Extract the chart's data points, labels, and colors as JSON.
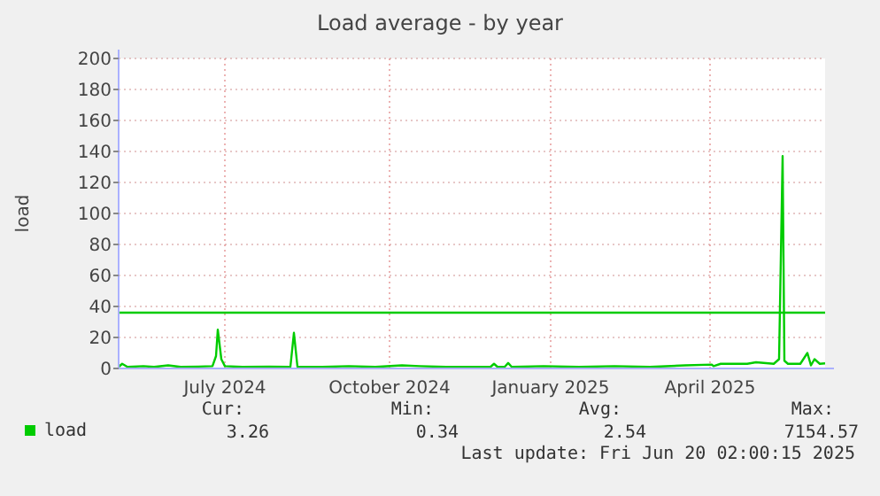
{
  "chart_data": {
    "type": "line",
    "title": "Load average - by year",
    "ylabel": "load",
    "x": [
      "2024-05-16",
      "2024-05-18",
      "2024-05-21",
      "2024-05-30",
      "2024-06-05",
      "2024-06-13",
      "2024-06-20",
      "2024-06-30",
      "2024-07-08",
      "2024-07-10",
      "2024-07-11",
      "2024-07-13",
      "2024-07-15",
      "2024-07-25",
      "2024-08-09",
      "2024-08-21",
      "2024-08-23",
      "2024-08-25",
      "2024-09-08",
      "2024-09-23",
      "2024-10-08",
      "2024-10-23",
      "2024-11-02",
      "2024-11-17",
      "2024-12-12",
      "2024-12-14",
      "2024-12-16",
      "2024-12-20",
      "2024-12-22",
      "2024-12-24",
      "2025-01-11",
      "2025-01-31",
      "2025-02-20",
      "2025-03-12",
      "2025-04-01",
      "2025-04-16",
      "2025-04-17",
      "2025-04-21",
      "2025-05-06",
      "2025-05-11",
      "2025-05-21",
      "2025-05-24",
      "2025-05-26",
      "2025-05-27",
      "2025-05-29",
      "2025-06-05",
      "2025-06-09",
      "2025-06-11",
      "2025-06-13",
      "2025-06-16",
      "2025-06-19"
    ],
    "series": [
      {
        "name": "load",
        "color": "#00cc00",
        "values": [
          1,
          3,
          1,
          1.5,
          1,
          2,
          1,
          1.2,
          1.5,
          8,
          25,
          6,
          1.5,
          1,
          1.2,
          1,
          23,
          1,
          1,
          1.5,
          1,
          2,
          1.5,
          1,
          1,
          3,
          1,
          1,
          3.5,
          1,
          1.5,
          1,
          1.5,
          1,
          2,
          2.5,
          1.5,
          3,
          3,
          4,
          3,
          6,
          137,
          5,
          3,
          3,
          10,
          2,
          6,
          3,
          3.26
        ]
      }
    ],
    "xlim": [
      "2024-05-16",
      "2025-06-19"
    ],
    "xticks": [
      {
        "value": "2024-07-15",
        "label": "July 2024"
      },
      {
        "value": "2024-10-16",
        "label": "October 2024"
      },
      {
        "value": "2025-01-15",
        "label": "January 2025"
      },
      {
        "value": "2025-04-15",
        "label": "April 2025"
      }
    ],
    "ylim": [
      0,
      200
    ],
    "yticks": [
      0,
      20,
      40,
      60,
      80,
      100,
      120,
      140,
      160,
      180,
      200
    ],
    "ref_lines": [
      {
        "axis": "y",
        "value": 36,
        "color": "#00cc00"
      }
    ],
    "grid": true,
    "legend": "bottom left",
    "marker": "none",
    "line_style": "solid",
    "annotations": [
      "Cur:",
      "Min:",
      "Avg:",
      "Max:",
      "3.26",
      "0.34",
      "2.54",
      "7154.57",
      "Last update: Fri Jun 20 02:00:15 2025"
    ]
  }
}
